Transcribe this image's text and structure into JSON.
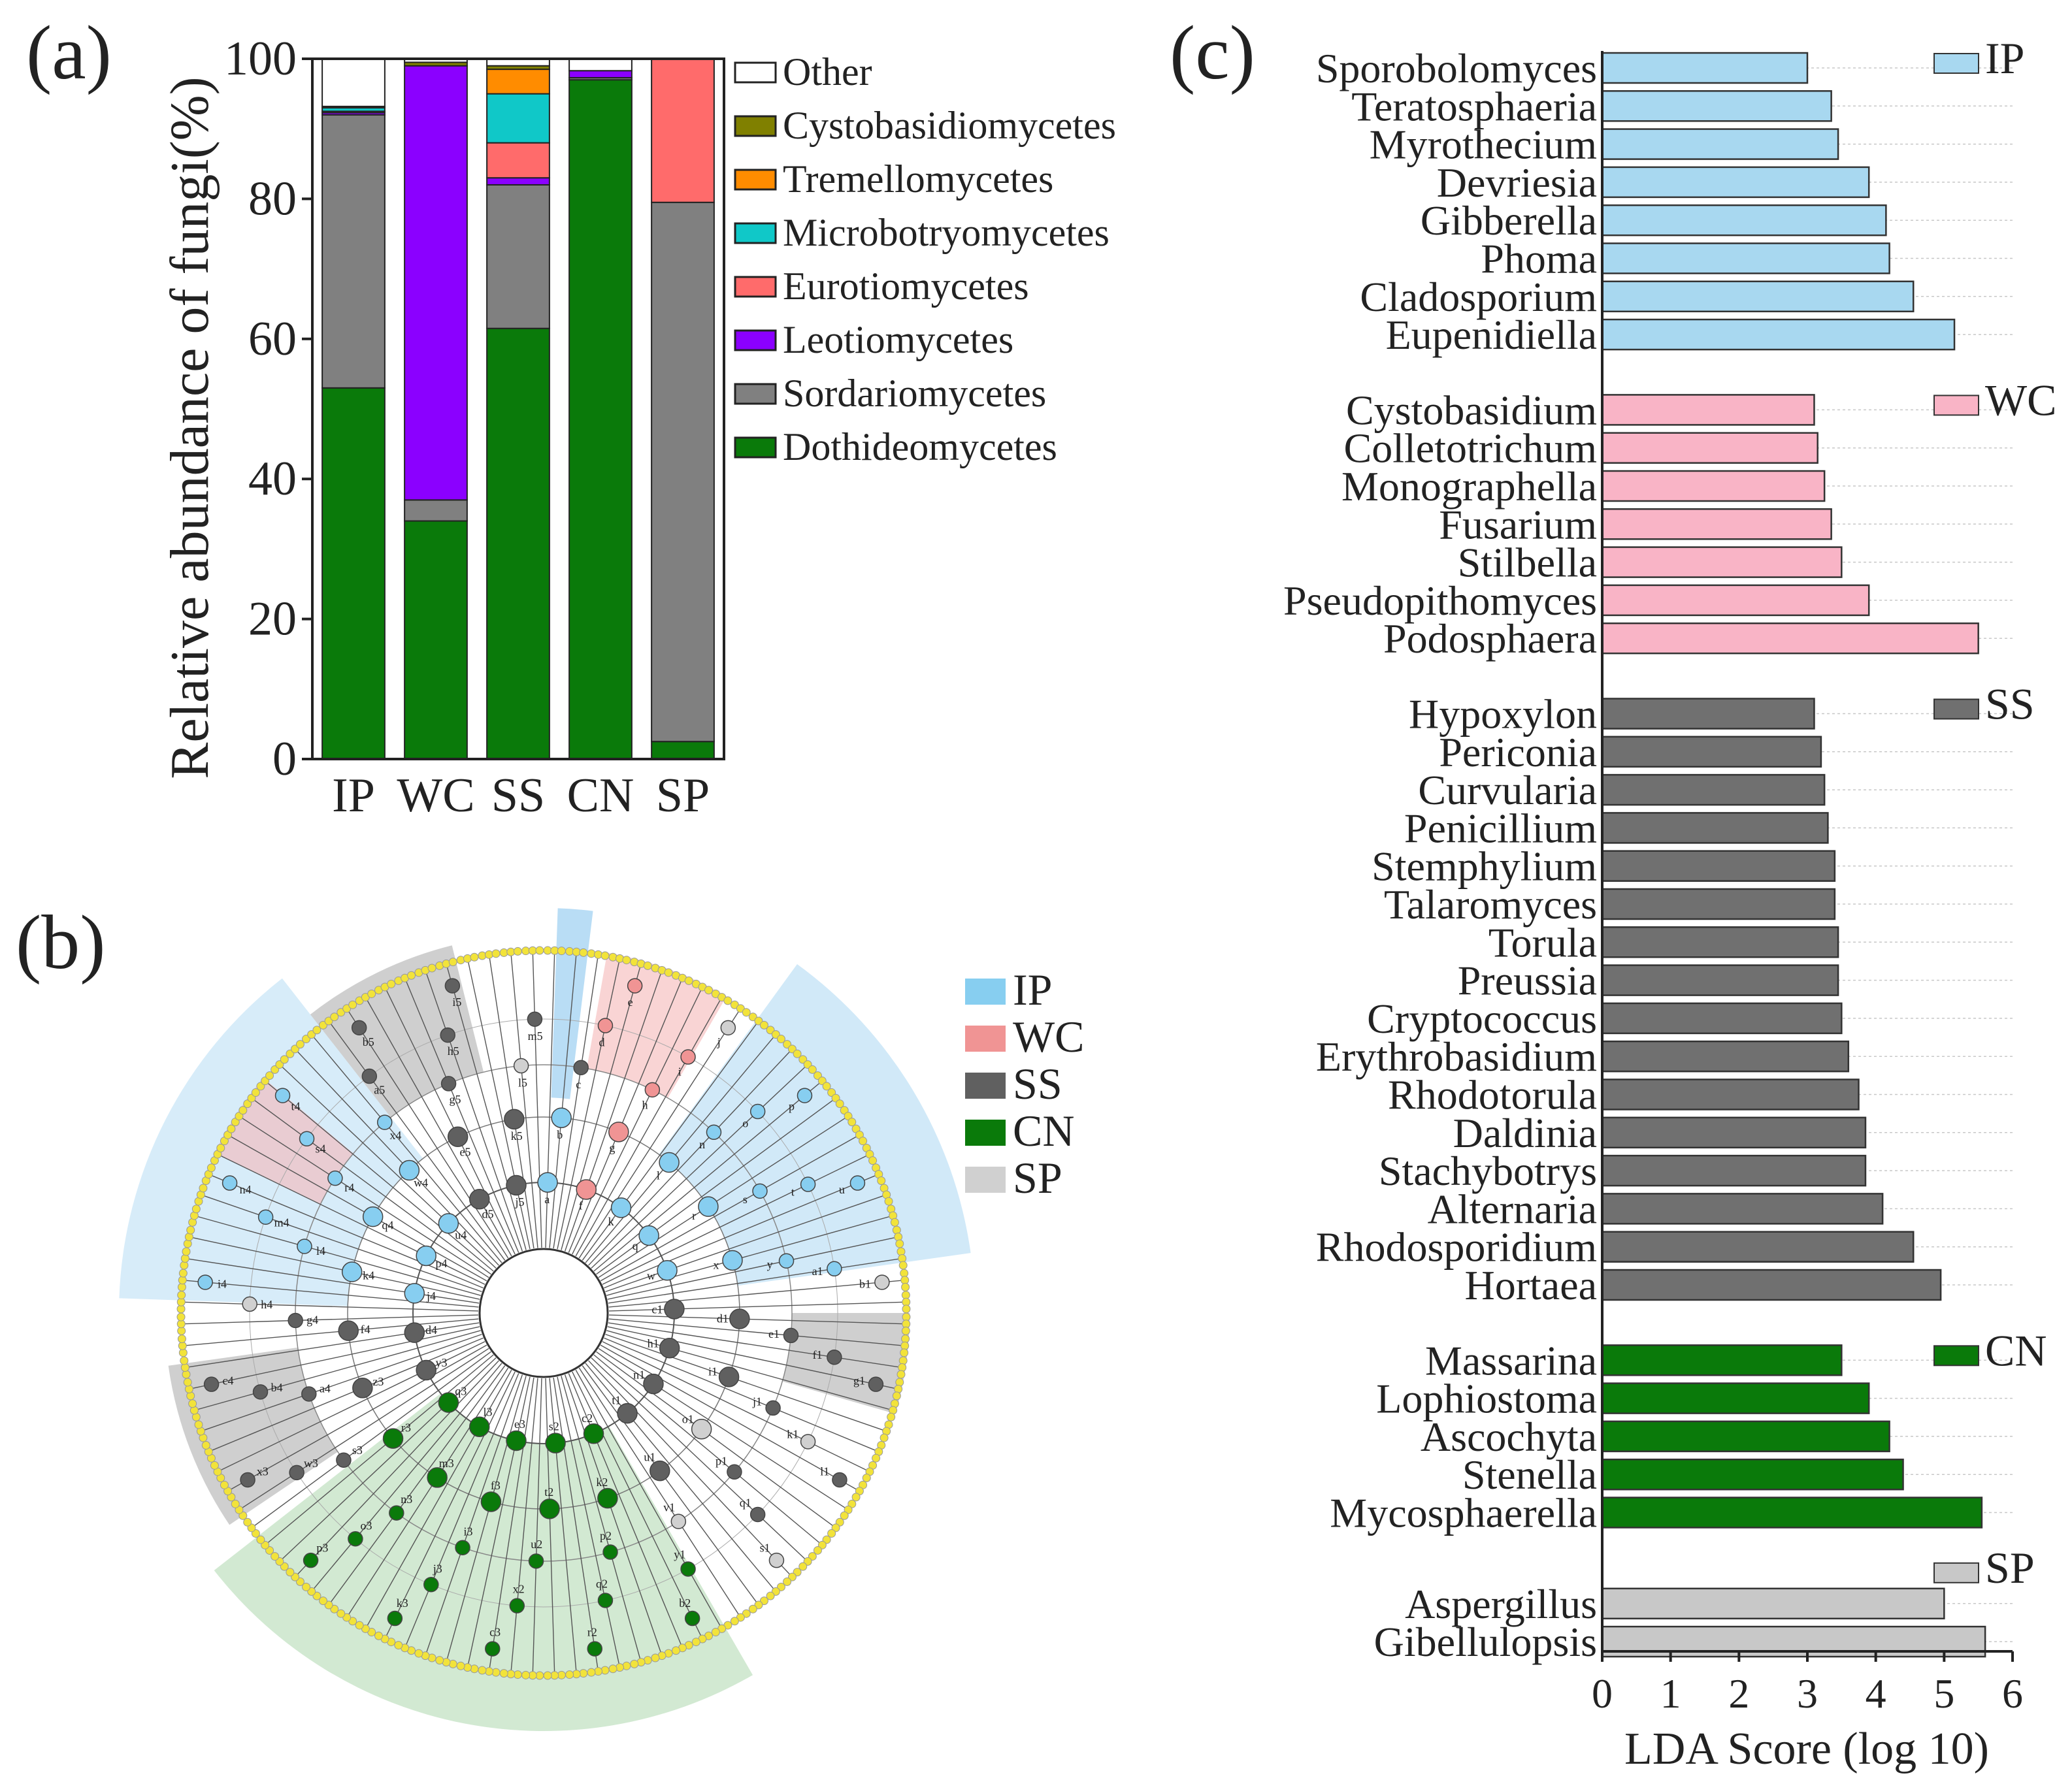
{
  "panel_labels": {
    "a": "(a)",
    "b": "(b)",
    "c": "(c)"
  },
  "chart_data": [
    {
      "id": "a",
      "type": "bar",
      "stacked": true,
      "ylabel": "Relative abundance of fungi(%)",
      "xlabel": "",
      "ylim": [
        0,
        100
      ],
      "yticks": [
        0,
        20,
        40,
        60,
        80,
        100
      ],
      "categories": [
        "IP",
        "WC",
        "SS",
        "CN",
        "SP"
      ],
      "legend_position": "right",
      "series": [
        {
          "name": "Dothideomycetes",
          "color": "#0a7a0a",
          "values": [
            53,
            34,
            61.5,
            97,
            2.5
          ]
        },
        {
          "name": "Sordariomycetes",
          "color": "#808080",
          "values": [
            39,
            3,
            20.5,
            0.3,
            77
          ]
        },
        {
          "name": "Leotiomycetes",
          "color": "#8b00ff",
          "values": [
            0.3,
            62,
            1,
            1,
            0
          ]
        },
        {
          "name": "Eurotiomycetes",
          "color": "#ff6b6b",
          "values": [
            0.2,
            0,
            5,
            0,
            20.5
          ]
        },
        {
          "name": "Microbotryomycetes",
          "color": "#10c8c8",
          "values": [
            0.5,
            0,
            7,
            0,
            0
          ]
        },
        {
          "name": "Tremellomycetes",
          "color": "#ff8c00",
          "values": [
            0.2,
            0,
            3.5,
            0,
            0
          ]
        },
        {
          "name": "Cystobasidiomycetes",
          "color": "#808000",
          "values": [
            0,
            0.5,
            0.5,
            0,
            0
          ]
        },
        {
          "name": "Other",
          "color": "#ffffff",
          "values": [
            6.8,
            0.5,
            1,
            1.7,
            0
          ]
        }
      ]
    },
    {
      "id": "b",
      "type": "cladogram",
      "legend": [
        {
          "name": "IP",
          "color": "#87cef0"
        },
        {
          "name": "WC",
          "color": "#f09494"
        },
        {
          "name": "SS",
          "color": "#606060"
        },
        {
          "name": "CN",
          "color": "#0a7a0a"
        },
        {
          "name": "SP",
          "color": "#d0d0d0"
        }
      ],
      "node_labels": [
        "a",
        "b",
        "c",
        "d",
        "e",
        "f",
        "g",
        "h",
        "i",
        "j",
        "k",
        "l",
        "n",
        "o",
        "p",
        "q",
        "r",
        "s",
        "t",
        "u",
        "w",
        "x",
        "y",
        "a1",
        "b1",
        "c1",
        "d1",
        "e1",
        "f1",
        "g1",
        "h1",
        "i1",
        "j1",
        "k1",
        "l1",
        "n1",
        "o1",
        "p1",
        "q1",
        "s1",
        "t1",
        "u1",
        "v1",
        "y1",
        "b2",
        "c2",
        "k2",
        "p2",
        "q2",
        "r2",
        "s2",
        "t2",
        "u2",
        "x2",
        "c3",
        "e3",
        "f3",
        "i3",
        "j3",
        "k3",
        "l3",
        "m3",
        "n3",
        "o3",
        "p3",
        "q3",
        "r3",
        "s3",
        "w3",
        "x3",
        "y3",
        "z3",
        "a4",
        "b4",
        "c4",
        "d4",
        "f4",
        "g4",
        "h4",
        "i4",
        "j4",
        "k4",
        "l4",
        "m4",
        "n4",
        "p4",
        "q4",
        "r4",
        "s4",
        "t4",
        "u4",
        "w4",
        "x4",
        "a5",
        "b5",
        "d5",
        "e5",
        "g5",
        "h5",
        "i5",
        "j5",
        "k5",
        "l5",
        "m5"
      ]
    },
    {
      "id": "c",
      "type": "bar",
      "orientation": "horizontal",
      "xlabel": "LDA Score (log 10)",
      "xlim": [
        0,
        6
      ],
      "xticks": [
        0,
        1,
        2,
        3,
        4,
        5,
        6
      ],
      "groups": [
        {
          "name": "IP",
          "color": "#a8d8f0",
          "items": [
            {
              "label": "Sporobolomyces",
              "value": 3.0
            },
            {
              "label": "Teratosphaeria",
              "value": 3.35
            },
            {
              "label": "Myrothecium",
              "value": 3.45
            },
            {
              "label": "Devriesia",
              "value": 3.9
            },
            {
              "label": "Gibberella",
              "value": 4.15
            },
            {
              "label": "Phoma",
              "value": 4.2
            },
            {
              "label": "Cladosporium",
              "value": 4.55
            },
            {
              "label": "Eupenidiella",
              "value": 5.15
            }
          ]
        },
        {
          "name": "WC",
          "color": "#f9b4c6",
          "items": [
            {
              "label": "Cystobasidium",
              "value": 3.1
            },
            {
              "label": "Colletotrichum",
              "value": 3.15
            },
            {
              "label": "Monographella",
              "value": 3.25
            },
            {
              "label": "Fusarium",
              "value": 3.35
            },
            {
              "label": "Stilbella",
              "value": 3.5
            },
            {
              "label": "Pseudopithomyces",
              "value": 3.9
            },
            {
              "label": "Podosphaera",
              "value": 5.5
            }
          ]
        },
        {
          "name": "SS",
          "color": "#707070",
          "items": [
            {
              "label": "Hypoxylon",
              "value": 3.1
            },
            {
              "label": "Periconia",
              "value": 3.2
            },
            {
              "label": "Curvularia",
              "value": 3.25
            },
            {
              "label": "Penicillium",
              "value": 3.3
            },
            {
              "label": "Stemphylium",
              "value": 3.4
            },
            {
              "label": "Talaromyces",
              "value": 3.4
            },
            {
              "label": "Torula",
              "value": 3.45
            },
            {
              "label": "Preussia",
              "value": 3.45
            },
            {
              "label": "Cryptococcus",
              "value": 3.5
            },
            {
              "label": "Erythrobasidium",
              "value": 3.6
            },
            {
              "label": "Rhodotorula",
              "value": 3.75
            },
            {
              "label": "Daldinia",
              "value": 3.85
            },
            {
              "label": "Stachybotrys",
              "value": 3.85
            },
            {
              "label": "Alternaria",
              "value": 4.1
            },
            {
              "label": "Rhodosporidium",
              "value": 4.55
            },
            {
              "label": "Hortaea",
              "value": 4.95
            }
          ]
        },
        {
          "name": "CN",
          "color": "#0a7a0a",
          "items": [
            {
              "label": "Massarina",
              "value": 3.5
            },
            {
              "label": "Lophiostoma",
              "value": 3.9
            },
            {
              "label": "Ascochyta",
              "value": 4.2
            },
            {
              "label": "Stenella",
              "value": 4.4
            },
            {
              "label": "Mycosphaerella",
              "value": 5.55
            }
          ]
        },
        {
          "name": "SP",
          "color": "#c8c8c8",
          "items": [
            {
              "label": "Aspergillus",
              "value": 5.0
            },
            {
              "label": "Gibellulopsis",
              "value": 5.6
            }
          ]
        }
      ]
    }
  ]
}
